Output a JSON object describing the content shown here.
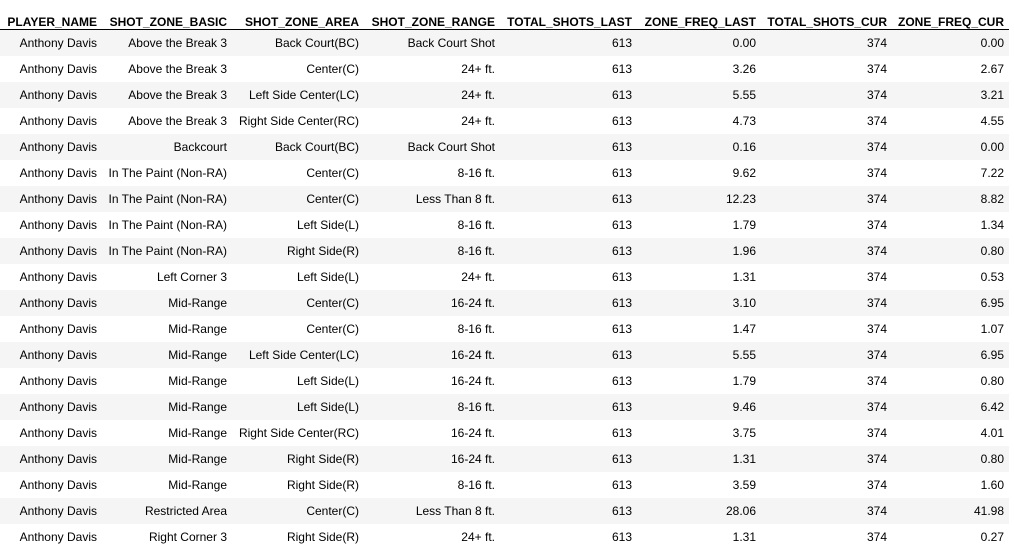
{
  "table": {
    "columns": [
      "PLAYER_NAME",
      "SHOT_ZONE_BASIC",
      "SHOT_ZONE_AREA",
      "SHOT_ZONE_RANGE",
      "TOTAL_SHOTS_LAST",
      "ZONE_FREQ_LAST",
      "TOTAL_SHOTS_CUR",
      "ZONE_FREQ_CUR"
    ],
    "rows": [
      [
        "Anthony Davis",
        "Above the Break 3",
        "Back Court(BC)",
        "Back Court Shot",
        "613",
        "0.00",
        "374",
        "0.00"
      ],
      [
        "Anthony Davis",
        "Above the Break 3",
        "Center(C)",
        "24+ ft.",
        "613",
        "3.26",
        "374",
        "2.67"
      ],
      [
        "Anthony Davis",
        "Above the Break 3",
        "Left Side Center(LC)",
        "24+ ft.",
        "613",
        "5.55",
        "374",
        "3.21"
      ],
      [
        "Anthony Davis",
        "Above the Break 3",
        "Right Side Center(RC)",
        "24+ ft.",
        "613",
        "4.73",
        "374",
        "4.55"
      ],
      [
        "Anthony Davis",
        "Backcourt",
        "Back Court(BC)",
        "Back Court Shot",
        "613",
        "0.16",
        "374",
        "0.00"
      ],
      [
        "Anthony Davis",
        "In The Paint (Non-RA)",
        "Center(C)",
        "8-16 ft.",
        "613",
        "9.62",
        "374",
        "7.22"
      ],
      [
        "Anthony Davis",
        "In The Paint (Non-RA)",
        "Center(C)",
        "Less Than 8 ft.",
        "613",
        "12.23",
        "374",
        "8.82"
      ],
      [
        "Anthony Davis",
        "In The Paint (Non-RA)",
        "Left Side(L)",
        "8-16 ft.",
        "613",
        "1.79",
        "374",
        "1.34"
      ],
      [
        "Anthony Davis",
        "In The Paint (Non-RA)",
        "Right Side(R)",
        "8-16 ft.",
        "613",
        "1.96",
        "374",
        "0.80"
      ],
      [
        "Anthony Davis",
        "Left Corner 3",
        "Left Side(L)",
        "24+ ft.",
        "613",
        "1.31",
        "374",
        "0.53"
      ],
      [
        "Anthony Davis",
        "Mid-Range",
        "Center(C)",
        "16-24 ft.",
        "613",
        "3.10",
        "374",
        "6.95"
      ],
      [
        "Anthony Davis",
        "Mid-Range",
        "Center(C)",
        "8-16 ft.",
        "613",
        "1.47",
        "374",
        "1.07"
      ],
      [
        "Anthony Davis",
        "Mid-Range",
        "Left Side Center(LC)",
        "16-24 ft.",
        "613",
        "5.55",
        "374",
        "6.95"
      ],
      [
        "Anthony Davis",
        "Mid-Range",
        "Left Side(L)",
        "16-24 ft.",
        "613",
        "1.79",
        "374",
        "0.80"
      ],
      [
        "Anthony Davis",
        "Mid-Range",
        "Left Side(L)",
        "8-16 ft.",
        "613",
        "9.46",
        "374",
        "6.42"
      ],
      [
        "Anthony Davis",
        "Mid-Range",
        "Right Side Center(RC)",
        "16-24 ft.",
        "613",
        "3.75",
        "374",
        "4.01"
      ],
      [
        "Anthony Davis",
        "Mid-Range",
        "Right Side(R)",
        "16-24 ft.",
        "613",
        "1.31",
        "374",
        "0.80"
      ],
      [
        "Anthony Davis",
        "Mid-Range",
        "Right Side(R)",
        "8-16 ft.",
        "613",
        "3.59",
        "374",
        "1.60"
      ],
      [
        "Anthony Davis",
        "Restricted Area",
        "Center(C)",
        "Less Than 8 ft.",
        "613",
        "28.06",
        "374",
        "41.98"
      ],
      [
        "Anthony Davis",
        "Right Corner 3",
        "Right Side(R)",
        "24+ ft.",
        "613",
        "1.31",
        "374",
        "0.27"
      ]
    ]
  }
}
